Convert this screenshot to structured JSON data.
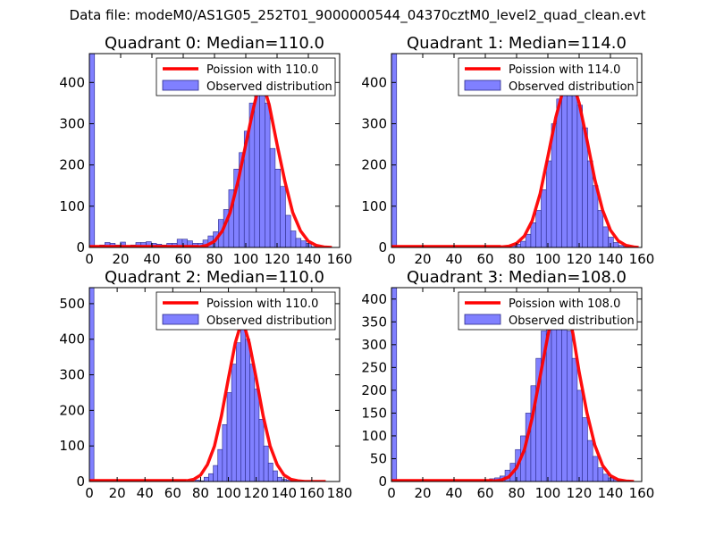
{
  "suptitle": "Data file: modeM0/AS1G05_252T01_9000000544_04370cztM0_level2_quad_clean.evt",
  "colors": {
    "bar_fill": "#8080ff",
    "bar_edge": "#2a2a8a",
    "curve": "#ff0000",
    "frame": "#000000"
  },
  "legend_labels": {
    "curve": "Poission with {m}",
    "hist": "Observed distribution"
  },
  "chart_data": [
    {
      "type": "bar",
      "quadrant": 0,
      "title": "Quadrant 0: Median=110.0",
      "median": 110.0,
      "curve_label": "Poission with 110.0",
      "xlim": [
        0,
        160
      ],
      "ylim": [
        0,
        470
      ],
      "xticks": [
        0,
        20,
        40,
        60,
        80,
        100,
        120,
        140,
        160
      ],
      "yticks": [
        0,
        100,
        200,
        300,
        400
      ],
      "bin_width": 3.3,
      "bins_start": 0,
      "hist_values": [
        470,
        4,
        6,
        12,
        10,
        6,
        13,
        5,
        6,
        12,
        12,
        14,
        10,
        8,
        6,
        10,
        10,
        20,
        20,
        16,
        10,
        10,
        18,
        28,
        38,
        68,
        92,
        140,
        190,
        230,
        282,
        350,
        380,
        388,
        350,
        240,
        190,
        148,
        78,
        40,
        22,
        16,
        10,
        2,
        0,
        0,
        0,
        0
      ],
      "curve_x": [
        70,
        75,
        80,
        85,
        90,
        95,
        100,
        105,
        108,
        110,
        112,
        115,
        120,
        125,
        130,
        135,
        140,
        145,
        150,
        155
      ],
      "curve_y": [
        1,
        5,
        15,
        40,
        85,
        160,
        250,
        340,
        385,
        395,
        385,
        345,
        250,
        160,
        85,
        40,
        15,
        5,
        1,
        0
      ]
    },
    {
      "type": "bar",
      "quadrant": 1,
      "title": "Quadrant 1: Median=114.0",
      "median": 114.0,
      "curve_label": "Poission with 114.0",
      "xlim": [
        0,
        160
      ],
      "ylim": [
        0,
        470
      ],
      "xticks": [
        0,
        20,
        40,
        60,
        80,
        100,
        120,
        140,
        160
      ],
      "yticks": [
        0,
        100,
        200,
        300,
        400
      ],
      "bin_width": 3.3,
      "bins_start": 0,
      "hist_values": [
        470,
        0,
        0,
        0,
        0,
        0,
        0,
        0,
        0,
        0,
        0,
        0,
        0,
        0,
        0,
        0,
        0,
        2,
        0,
        0,
        0,
        0,
        2,
        4,
        8,
        15,
        32,
        60,
        90,
        140,
        210,
        300,
        360,
        395,
        410,
        390,
        345,
        290,
        210,
        150,
        90,
        50,
        25,
        12,
        5,
        2,
        0,
        0
      ],
      "curve_x": [
        70,
        75,
        80,
        85,
        90,
        95,
        100,
        105,
        110,
        112,
        114,
        116,
        120,
        125,
        130,
        135,
        140,
        145,
        150,
        155,
        158
      ],
      "curve_y": [
        1,
        3,
        10,
        28,
        65,
        130,
        220,
        315,
        385,
        400,
        405,
        400,
        350,
        260,
        165,
        90,
        42,
        16,
        5,
        1,
        0
      ]
    },
    {
      "type": "bar",
      "quadrant": 2,
      "title": "Quadrant 2: Median=110.0",
      "median": 110.0,
      "curve_label": "Poission with 110.0",
      "xlim": [
        0,
        180
      ],
      "ylim": [
        0,
        545
      ],
      "xticks": [
        0,
        20,
        40,
        60,
        80,
        100,
        120,
        140,
        160,
        180
      ],
      "yticks": [
        0,
        100,
        200,
        300,
        400,
        500
      ],
      "bin_width": 3.3,
      "bins_start": 0,
      "hist_values": [
        545,
        0,
        0,
        0,
        0,
        0,
        0,
        0,
        0,
        0,
        0,
        0,
        0,
        0,
        0,
        0,
        0,
        0,
        4,
        2,
        2,
        0,
        0,
        4,
        2,
        12,
        22,
        45,
        90,
        160,
        250,
        330,
        390,
        440,
        400,
        330,
        260,
        175,
        100,
        52,
        30,
        12,
        6,
        4,
        2,
        0,
        0,
        0,
        0,
        0,
        0,
        0,
        0,
        0
      ],
      "curve_x": [
        70,
        75,
        80,
        85,
        90,
        95,
        100,
        105,
        108,
        110,
        112,
        115,
        120,
        125,
        130,
        135,
        140,
        145,
        150,
        155,
        160,
        165,
        170
      ],
      "curve_y": [
        2,
        6,
        18,
        48,
        100,
        185,
        290,
        390,
        430,
        440,
        430,
        390,
        290,
        185,
        100,
        48,
        18,
        6,
        2,
        0,
        0,
        0,
        0
      ]
    },
    {
      "type": "bar",
      "quadrant": 3,
      "title": "Quadrant 3: Median=108.0",
      "median": 108.0,
      "curve_label": "Poission with 108.0",
      "xlim": [
        0,
        160
      ],
      "ylim": [
        0,
        425
      ],
      "xticks": [
        0,
        20,
        40,
        60,
        80,
        100,
        120,
        140,
        160
      ],
      "yticks": [
        0,
        50,
        100,
        150,
        200,
        250,
        300,
        350,
        400
      ],
      "bin_width": 3.3,
      "bins_start": 0,
      "hist_values": [
        425,
        0,
        0,
        0,
        0,
        0,
        0,
        0,
        0,
        0,
        0,
        0,
        0,
        0,
        0,
        0,
        2,
        4,
        4,
        6,
        8,
        12,
        25,
        40,
        70,
        100,
        150,
        210,
        270,
        330,
        380,
        410,
        410,
        380,
        330,
        270,
        200,
        140,
        90,
        55,
        30,
        16,
        8,
        4,
        2,
        0,
        0,
        0
      ],
      "curve_x": [
        65,
        70,
        75,
        80,
        85,
        90,
        95,
        100,
        104,
        108,
        112,
        116,
        120,
        125,
        130,
        135,
        140,
        145,
        150,
        155
      ],
      "curve_y": [
        1,
        3,
        10,
        30,
        70,
        140,
        230,
        320,
        380,
        410,
        385,
        325,
        240,
        150,
        80,
        35,
        13,
        4,
        1,
        0
      ]
    }
  ]
}
